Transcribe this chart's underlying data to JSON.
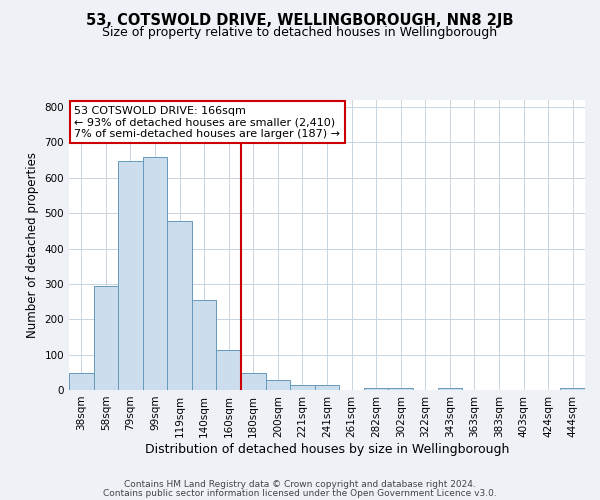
{
  "title": "53, COTSWOLD DRIVE, WELLINGBOROUGH, NN8 2JB",
  "subtitle": "Size of property relative to detached houses in Wellingborough",
  "xlabel": "Distribution of detached houses by size in Wellingborough",
  "ylabel": "Number of detached properties",
  "bar_labels": [
    "38sqm",
    "58sqm",
    "79sqm",
    "99sqm",
    "119sqm",
    "140sqm",
    "160sqm",
    "180sqm",
    "200sqm",
    "221sqm",
    "241sqm",
    "261sqm",
    "282sqm",
    "302sqm",
    "322sqm",
    "343sqm",
    "363sqm",
    "383sqm",
    "403sqm",
    "424sqm",
    "444sqm"
  ],
  "bar_values": [
    48,
    295,
    648,
    660,
    477,
    254,
    113,
    48,
    28,
    14,
    14,
    0,
    5,
    5,
    0,
    5,
    0,
    0,
    0,
    0,
    5
  ],
  "bar_color": "#ccdded",
  "bar_edge_color": "#6699bb",
  "vline_x": 6.5,
  "vline_color": "#cc0000",
  "annotation_line1": "53 COTSWOLD DRIVE: 166sqm",
  "annotation_line2": "← 93% of detached houses are smaller (2,410)",
  "annotation_line3": "7% of semi-detached houses are larger (187) →",
  "annotation_box_color": "#ffffff",
  "annotation_box_edge_color": "#cc0000",
  "ylim": [
    0,
    820
  ],
  "yticks": [
    0,
    100,
    200,
    300,
    400,
    500,
    600,
    700,
    800
  ],
  "footer_line1": "Contains HM Land Registry data © Crown copyright and database right 2024.",
  "footer_line2": "Contains public sector information licensed under the Open Government Licence v3.0.",
  "bg_color": "#eef2f7",
  "plot_bg_color": "#ffffff",
  "grid_color": "#c8d4e0",
  "title_fontsize": 10.5,
  "subtitle_fontsize": 9,
  "xlabel_fontsize": 9,
  "ylabel_fontsize": 8.5,
  "annotation_fontsize": 8,
  "footer_fontsize": 6.5,
  "tick_fontsize": 7.5
}
